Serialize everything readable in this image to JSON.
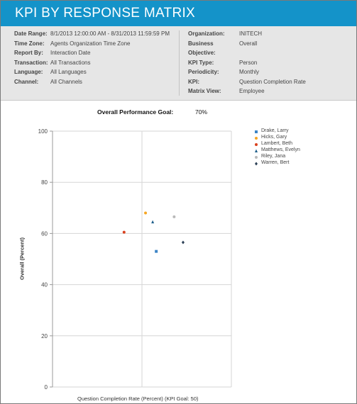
{
  "report": {
    "title": "KPI BY RESPONSE MATRIX"
  },
  "info_left": [
    {
      "label": "Date Range:",
      "value": "8/1/2013 12:00:00 AM - 8/31/2013 11:59:59 PM"
    },
    {
      "label": "Time Zone:",
      "value": "Agents Organization Time Zone"
    },
    {
      "label": "Report By:",
      "value": "Interaction Date"
    },
    {
      "label": "Transaction:",
      "value": "All Transactions"
    },
    {
      "label": "Language:",
      "value": "All Languages"
    },
    {
      "label": "Channel:",
      "value": "All Channels"
    }
  ],
  "info_right": [
    {
      "label": "Organization:",
      "value": "INITECH"
    },
    {
      "label": "Business",
      "value": "Overall"
    },
    {
      "label": "Objective:",
      "value": ""
    },
    {
      "label": "KPI Type:",
      "value": "Person"
    },
    {
      "label": "Periodicity:",
      "value": "Monthly"
    },
    {
      "label": "KPI:",
      "value": "Question Completion Rate"
    },
    {
      "label": "Matrix View:",
      "value": "Employee"
    }
  ],
  "goal": {
    "label": "Overall Performance Goal:",
    "value": "70%"
  },
  "chart_data": {
    "type": "scatter",
    "title": "",
    "xlabel": "Question Completion Rate (Percent) (KPI Goal: 50)",
    "ylabel": "Overall (Percent)",
    "ylim": [
      0,
      100
    ],
    "yticks": [
      "0",
      "20",
      "40",
      "60",
      "80",
      "100"
    ],
    "x_grid_fraction": [
      0.5
    ],
    "grid": true,
    "legend_position": "right",
    "series": [
      {
        "name": "Drake, Larry",
        "color": "#3d85c6",
        "marker": "square",
        "x": 0.58,
        "y": 53
      },
      {
        "name": "Hicks, Gary",
        "color": "#f6a623",
        "marker": "circle",
        "x": 0.52,
        "y": 68
      },
      {
        "name": "Lambert, Beth",
        "color": "#d9411e",
        "marker": "circle",
        "x": 0.4,
        "y": 60.5
      },
      {
        "name": "Matthews, Evelyn",
        "color": "#1f5f8b",
        "marker": "triangle",
        "x": 0.56,
        "y": 64.5
      },
      {
        "name": "Riley, Jana",
        "color": "#b9b9b9",
        "marker": "circle",
        "x": 0.68,
        "y": 66.5
      },
      {
        "name": "Warren, Bert",
        "color": "#2b3f55",
        "marker": "diamond",
        "x": 0.73,
        "y": 56.5
      }
    ]
  }
}
